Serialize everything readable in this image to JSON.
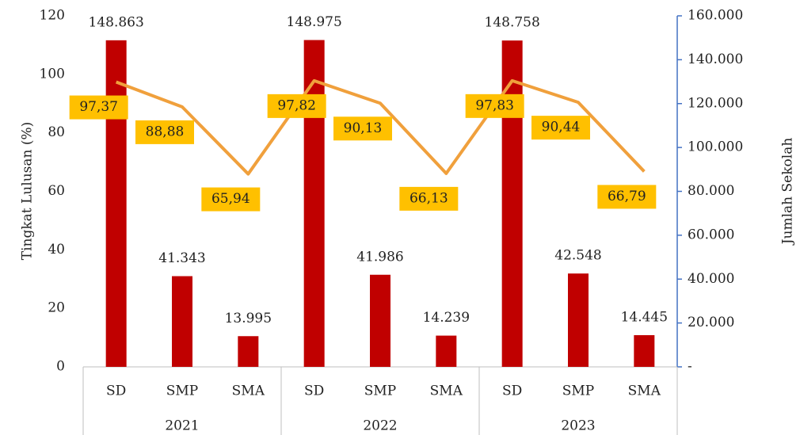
{
  "chart_data": {
    "type": "bar",
    "categories": [
      "SD",
      "SMP",
      "SMA",
      "SD",
      "SMP",
      "SMA",
      "SD",
      "SMP",
      "SMA"
    ],
    "groups": [
      "2021",
      "2022",
      "2023"
    ],
    "y_label": "Tingkat Lulusan (%)",
    "y2_label": "Jumlah Sekolah",
    "ylim": [
      0,
      120
    ],
    "yticks": [
      0,
      20,
      40,
      60,
      80,
      100,
      120
    ],
    "y2lim": [
      0,
      160000
    ],
    "y2ticks": [
      {
        "value": 0,
        "label": "-"
      },
      {
        "value": 20000,
        "label": "20.000"
      },
      {
        "value": 40000,
        "label": "40.000"
      },
      {
        "value": 60000,
        "label": "60.000"
      },
      {
        "value": 80000,
        "label": "80.000"
      },
      {
        "value": 100000,
        "label": "100.000"
      },
      {
        "value": 120000,
        "label": "120.000"
      },
      {
        "value": 140000,
        "label": "140.000"
      },
      {
        "value": 160000,
        "label": "160.000"
      }
    ],
    "series": [
      {
        "type": "bar",
        "axis": "y2",
        "color": "#c00000",
        "values": [
          148863,
          41343,
          13995,
          148975,
          41986,
          14239,
          148758,
          42548,
          14445
        ],
        "value_labels": [
          "148.863",
          "41.343",
          "13.995",
          "148.975",
          "41.986",
          "14.239",
          "148.758",
          "42.548",
          "14.445"
        ]
      },
      {
        "type": "line",
        "axis": "y",
        "color": "#f0a03c",
        "label_color": "#ffc000",
        "values": [
          97.37,
          88.88,
          65.94,
          97.82,
          90.13,
          66.13,
          97.83,
          90.44,
          66.79
        ],
        "value_labels": [
          "97,37",
          "88,88",
          "65,94",
          "97,82",
          "90,13",
          "66,13",
          "97,83",
          "90,44",
          "66,79"
        ]
      }
    ]
  }
}
